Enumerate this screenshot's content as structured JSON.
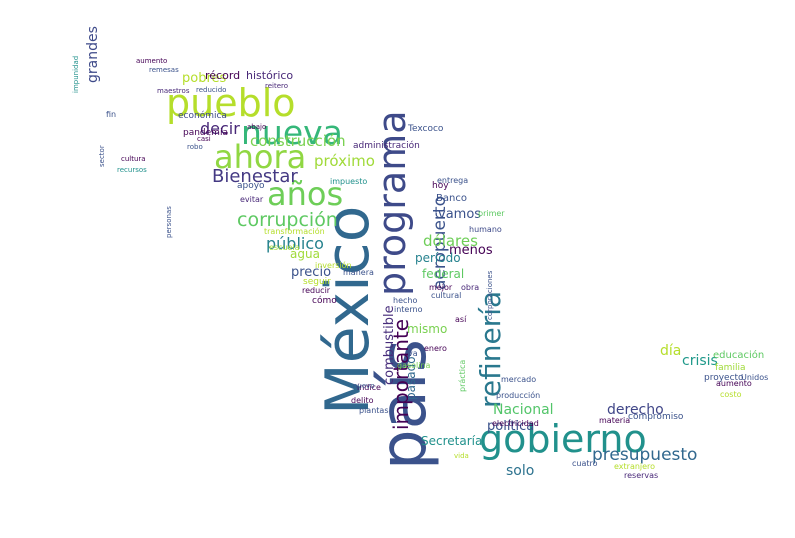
{
  "image": {
    "kind": "word-cloud",
    "mask_shape": "map-of-mexico",
    "background": "#ffffff",
    "palette": [
      "#440154",
      "#3b528b",
      "#21918c",
      "#5ec962",
      "#b5de2b",
      "#fde725"
    ]
  },
  "words": [
    {
      "text": "país",
      "color": "#3b528b"
    },
    {
      "text": "México",
      "color": "#31688e"
    },
    {
      "text": "gobierno",
      "color": "#21918c"
    },
    {
      "text": "programa",
      "color": "#3e4a89"
    },
    {
      "text": "pueblo",
      "color": "#b5de2b"
    },
    {
      "text": "nueva",
      "color": "#35b779"
    },
    {
      "text": "ahora",
      "color": "#90d743"
    },
    {
      "text": "años",
      "color": "#6ece58"
    },
    {
      "text": "refinería",
      "color": "#2a788e"
    },
    {
      "text": "importante",
      "color": "#440154"
    },
    {
      "text": "presupuesto",
      "color": "#31688e"
    },
    {
      "text": "corrupción",
      "color": "#5ec962"
    },
    {
      "text": "Bienestar",
      "color": "#443983"
    },
    {
      "text": "aeropuerto",
      "color": "#3b528b"
    },
    {
      "text": "construcción",
      "color": "#7ad151"
    },
    {
      "text": "decir",
      "color": "#482878"
    },
    {
      "text": "próximo",
      "color": "#a0da39"
    },
    {
      "text": "público",
      "color": "#26828e"
    },
    {
      "text": "dólares",
      "color": "#6ece58"
    },
    {
      "text": "combustible",
      "color": "#472d7b"
    },
    {
      "text": "Nacional",
      "color": "#52c569"
    },
    {
      "text": "derecho",
      "color": "#404688"
    },
    {
      "text": "crisis",
      "color": "#1f998a"
    },
    {
      "text": "solo",
      "color": "#2c728e"
    },
    {
      "text": "política",
      "color": "#3b528b"
    },
    {
      "text": "Secretaría",
      "color": "#21918c"
    },
    {
      "text": "día",
      "color": "#b5de2b"
    },
    {
      "text": "pobres",
      "color": "#b5de2b"
    },
    {
      "text": "récord",
      "color": "#440154"
    },
    {
      "text": "histórico",
      "color": "#482878"
    },
    {
      "text": "grandes",
      "color": "#3e4a89"
    },
    {
      "text": "vamos",
      "color": "#3b528b"
    },
    {
      "text": "menos",
      "color": "#440154"
    },
    {
      "text": "período",
      "color": "#26828e"
    },
    {
      "text": "precio",
      "color": "#3b528b"
    },
    {
      "text": "agua",
      "color": "#a0da39"
    },
    {
      "text": "federal",
      "color": "#5ec962"
    },
    {
      "text": "pasado",
      "color": "#31688e"
    },
    {
      "text": "mismo",
      "color": "#7ad151"
    },
    {
      "text": "Banco",
      "color": "#3b528b"
    },
    {
      "text": "hoy",
      "color": "#440154"
    },
    {
      "text": "administración",
      "color": "#482878"
    },
    {
      "text": "Texcoco",
      "color": "#3b528b"
    },
    {
      "text": "pandemia",
      "color": "#440154"
    },
    {
      "text": "económica",
      "color": "#3e4a89"
    },
    {
      "text": "apoyo",
      "color": "#3b528b"
    },
    {
      "text": "impuesto",
      "color": "#21918c"
    },
    {
      "text": "evitar",
      "color": "#482878"
    },
    {
      "text": "transformación",
      "color": "#b5de2b"
    },
    {
      "text": "escuela",
      "color": "#a0da39"
    },
    {
      "text": "inversión",
      "color": "#b5de2b"
    },
    {
      "text": "seguir",
      "color": "#b5de2b"
    },
    {
      "text": "reducir",
      "color": "#440154"
    },
    {
      "text": "cómo",
      "color": "#440154"
    },
    {
      "text": "manera",
      "color": "#3b528b"
    },
    {
      "text": "hecho",
      "color": "#3b528b"
    },
    {
      "text": "interno",
      "color": "#3b528b"
    },
    {
      "text": "mejor",
      "color": "#440154"
    },
    {
      "text": "obra",
      "color": "#482878"
    },
    {
      "text": "cultural",
      "color": "#3b528b"
    },
    {
      "text": "humano",
      "color": "#3e4a89"
    },
    {
      "text": "entrega",
      "color": "#3b528b"
    },
    {
      "text": "primer",
      "color": "#5ec962"
    },
    {
      "text": "educación",
      "color": "#5ec962"
    },
    {
      "text": "familia",
      "color": "#a0da39"
    },
    {
      "text": "proyecto",
      "color": "#3b528b"
    },
    {
      "text": "aumento",
      "color": "#440154"
    },
    {
      "text": "costo",
      "color": "#b5de2b"
    },
    {
      "text": "compromiso",
      "color": "#3b528b"
    },
    {
      "text": "materia",
      "color": "#440154"
    },
    {
      "text": "Unidos",
      "color": "#3b528b"
    },
    {
      "text": "reservas",
      "color": "#482878"
    },
    {
      "text": "cuatro",
      "color": "#3b528b"
    },
    {
      "text": "extranjero",
      "color": "#b5de2b"
    },
    {
      "text": "electricidad",
      "color": "#440154"
    },
    {
      "text": "producción",
      "color": "#3b528b"
    },
    {
      "text": "mercado",
      "color": "#3b528b"
    },
    {
      "text": "delito",
      "color": "#440154"
    },
    {
      "text": "índice",
      "color": "#440154"
    },
    {
      "text": "plantas",
      "color": "#3b528b"
    },
    {
      "text": "gasolina",
      "color": "#7ad151"
    },
    {
      "text": "enero",
      "color": "#440154"
    },
    {
      "text": "va",
      "color": "#3b528b"
    },
    {
      "text": "vida",
      "color": "#b5de2b"
    },
    {
      "text": "abajo",
      "color": "#440154"
    },
    {
      "text": "casi",
      "color": "#440154"
    },
    {
      "text": "robo",
      "color": "#3b528b"
    },
    {
      "text": "maestros",
      "color": "#482878"
    },
    {
      "text": "reducido",
      "color": "#3b528b"
    },
    {
      "text": "reitero",
      "color": "#482878"
    },
    {
      "text": "aumento",
      "color": "#440154"
    },
    {
      "text": "remesas",
      "color": "#3b528b"
    },
    {
      "text": "impunidad",
      "color": "#21918c"
    },
    {
      "text": "fin",
      "color": "#3b528b"
    },
    {
      "text": "cultura",
      "color": "#440154"
    },
    {
      "text": "recursos",
      "color": "#21918c"
    },
    {
      "text": "sector",
      "color": "#3b528b"
    },
    {
      "text": "personas",
      "color": "#3b528b"
    },
    {
      "text": "así",
      "color": "#440154"
    },
    {
      "text": "nuevo",
      "color": "#3b528b"
    },
    {
      "text": "práctica",
      "color": "#5ec962"
    },
    {
      "text": "corporaciones",
      "color": "#3b528b"
    }
  ]
}
